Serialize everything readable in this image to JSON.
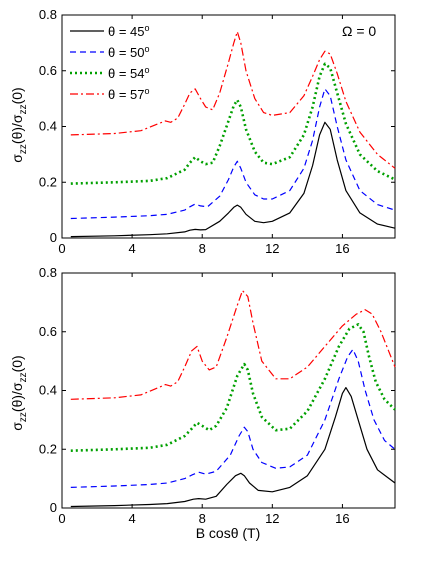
{
  "figure": {
    "xlabel": "B cosθ  (T)",
    "ylabel_top": "σzz(θ)/σzz(0)",
    "ylabel_bottom": "σzz(θ)/σzz(0)",
    "annotation": "Ω = 0"
  },
  "chart_data": [
    {
      "type": "line",
      "panel": "top",
      "annotation": "Ω = 0",
      "xlabel": "",
      "ylabel": "σzz(θ)/σzz(0)",
      "xlim": [
        0,
        19
      ],
      "ylim": [
        0,
        0.8
      ],
      "xticks": [
        0,
        4,
        8,
        12,
        16
      ],
      "yticks": [
        0,
        0.2,
        0.4,
        0.6,
        0.8
      ],
      "grid": false,
      "legend_position": "top-left",
      "series": [
        {
          "name": "θ = 45°",
          "color": "#000000",
          "style": "solid",
          "x": [
            0.5,
            3,
            5,
            6,
            7,
            7.3,
            7.6,
            7.9,
            8.2,
            9,
            9.5,
            9.8,
            10,
            10.2,
            10.5,
            11,
            11.5,
            12,
            13,
            13.8,
            14.3,
            14.7,
            15,
            15.3,
            15.7,
            16.2,
            17,
            18,
            19
          ],
          "y": [
            0.005,
            0.008,
            0.012,
            0.015,
            0.022,
            0.028,
            0.031,
            0.029,
            0.03,
            0.06,
            0.09,
            0.11,
            0.118,
            0.11,
            0.085,
            0.06,
            0.055,
            0.06,
            0.09,
            0.16,
            0.26,
            0.37,
            0.415,
            0.39,
            0.28,
            0.17,
            0.09,
            0.05,
            0.035
          ]
        },
        {
          "name": "θ = 50°",
          "color": "#0000ff",
          "style": "dashed",
          "x": [
            0.5,
            3,
            5,
            6,
            7,
            7.3,
            7.6,
            7.9,
            8.3,
            9,
            9.5,
            9.8,
            10,
            10.2,
            10.5,
            11,
            11.5,
            12,
            13,
            13.8,
            14.3,
            14.7,
            15,
            15.3,
            15.7,
            16.2,
            17,
            18,
            19
          ],
          "y": [
            0.07,
            0.075,
            0.08,
            0.085,
            0.1,
            0.112,
            0.122,
            0.115,
            0.112,
            0.15,
            0.21,
            0.255,
            0.275,
            0.25,
            0.2,
            0.155,
            0.14,
            0.14,
            0.17,
            0.25,
            0.35,
            0.47,
            0.535,
            0.51,
            0.4,
            0.28,
            0.17,
            0.12,
            0.1
          ]
        },
        {
          "name": "θ = 54°",
          "color": "#00a000",
          "style": "dotted",
          "x": [
            0.5,
            3,
            5,
            6,
            7,
            7.3,
            7.6,
            7.9,
            8.2,
            8.6,
            9,
            9.5,
            9.8,
            10,
            10.2,
            10.5,
            11,
            11.5,
            12,
            13,
            13.8,
            14.3,
            14.7,
            15,
            15.3,
            15.7,
            16.2,
            17,
            18,
            19
          ],
          "y": [
            0.195,
            0.2,
            0.205,
            0.215,
            0.245,
            0.27,
            0.29,
            0.275,
            0.265,
            0.27,
            0.33,
            0.42,
            0.475,
            0.495,
            0.47,
            0.39,
            0.31,
            0.27,
            0.265,
            0.29,
            0.37,
            0.47,
            0.58,
            0.625,
            0.61,
            0.52,
            0.41,
            0.3,
            0.24,
            0.21
          ]
        },
        {
          "name": "θ = 57°",
          "color": "#ff0000",
          "style": "dashdot",
          "x": [
            0.5,
            3,
            4.5,
            5.5,
            5.9,
            6.2,
            6.6,
            7,
            7.3,
            7.6,
            7.9,
            8.2,
            8.6,
            9,
            9.5,
            9.8,
            10,
            10.2,
            10.5,
            11,
            11.5,
            12,
            13,
            13.8,
            14.3,
            14.7,
            15,
            15.3,
            15.7,
            16.2,
            17,
            18,
            19
          ],
          "y": [
            0.37,
            0.375,
            0.385,
            0.41,
            0.42,
            0.415,
            0.43,
            0.48,
            0.52,
            0.535,
            0.5,
            0.47,
            0.46,
            0.52,
            0.63,
            0.7,
            0.74,
            0.7,
            0.6,
            0.5,
            0.45,
            0.44,
            0.45,
            0.51,
            0.58,
            0.64,
            0.67,
            0.66,
            0.59,
            0.49,
            0.38,
            0.3,
            0.25
          ]
        }
      ]
    },
    {
      "type": "line",
      "panel": "bottom",
      "xlabel": "B cosθ  (T)",
      "ylabel": "σzz(θ)/σzz(0)",
      "xlim": [
        0,
        19
      ],
      "ylim": [
        0,
        0.8
      ],
      "xticks": [
        0,
        4,
        8,
        12,
        16
      ],
      "yticks": [
        0,
        0.2,
        0.4,
        0.6,
        0.8
      ],
      "grid": false,
      "series": [
        {
          "name": "θ = 45°",
          "color": "#000000",
          "style": "solid",
          "x": [
            0.5,
            3,
            5,
            6,
            7,
            7.5,
            7.8,
            8.2,
            8.8,
            9.4,
            9.9,
            10.2,
            10.4,
            10.7,
            11.2,
            12,
            13,
            14,
            15,
            15.6,
            16,
            16.2,
            16.5,
            16.9,
            17.4,
            18,
            19
          ],
          "y": [
            0.005,
            0.008,
            0.012,
            0.015,
            0.022,
            0.03,
            0.032,
            0.03,
            0.04,
            0.08,
            0.11,
            0.118,
            0.11,
            0.085,
            0.06,
            0.055,
            0.07,
            0.11,
            0.2,
            0.31,
            0.39,
            0.41,
            0.38,
            0.3,
            0.2,
            0.13,
            0.085
          ]
        },
        {
          "name": "θ = 50°",
          "color": "#0000ff",
          "style": "dashed",
          "x": [
            0.5,
            3,
            5,
            6,
            7,
            7.4,
            7.8,
            8.2,
            8.8,
            9.6,
            10.1,
            10.4,
            10.6,
            10.9,
            11.4,
            12.2,
            13,
            14,
            15,
            15.8,
            16.3,
            16.6,
            16.9,
            17.3,
            17.8,
            18.4,
            19
          ],
          "y": [
            0.07,
            0.075,
            0.08,
            0.085,
            0.1,
            0.112,
            0.122,
            0.115,
            0.125,
            0.18,
            0.245,
            0.275,
            0.26,
            0.2,
            0.155,
            0.135,
            0.14,
            0.18,
            0.3,
            0.44,
            0.515,
            0.54,
            0.5,
            0.4,
            0.3,
            0.23,
            0.2
          ]
        },
        {
          "name": "θ = 54°",
          "color": "#00a000",
          "style": "dotted",
          "x": [
            0.5,
            3,
            5,
            6,
            7,
            7.4,
            7.7,
            8,
            8.4,
            8.8,
            9.4,
            10,
            10.4,
            10.6,
            10.9,
            11.4,
            12.2,
            13,
            14,
            15,
            15.8,
            16.4,
            16.9,
            17.2,
            17.5,
            17.9,
            18.4,
            19
          ],
          "y": [
            0.195,
            0.2,
            0.205,
            0.215,
            0.245,
            0.27,
            0.29,
            0.28,
            0.265,
            0.28,
            0.34,
            0.45,
            0.49,
            0.47,
            0.39,
            0.31,
            0.265,
            0.27,
            0.33,
            0.44,
            0.55,
            0.61,
            0.625,
            0.6,
            0.52,
            0.43,
            0.37,
            0.335
          ]
        },
        {
          "name": "θ = 57°",
          "color": "#ff0000",
          "style": "dashdot",
          "x": [
            0.5,
            3,
            4.5,
            5.5,
            5.9,
            6.2,
            6.6,
            7,
            7.4,
            7.7,
            8,
            8.4,
            8.8,
            9.4,
            10,
            10.3,
            10.6,
            10.9,
            11.4,
            12.2,
            13,
            14,
            15,
            16,
            16.8,
            17.3,
            17.7,
            18.2,
            19
          ],
          "y": [
            0.37,
            0.375,
            0.385,
            0.41,
            0.42,
            0.415,
            0.43,
            0.48,
            0.535,
            0.55,
            0.5,
            0.47,
            0.48,
            0.58,
            0.69,
            0.74,
            0.72,
            0.63,
            0.5,
            0.44,
            0.44,
            0.48,
            0.55,
            0.62,
            0.66,
            0.675,
            0.66,
            0.6,
            0.48
          ]
        }
      ]
    }
  ]
}
